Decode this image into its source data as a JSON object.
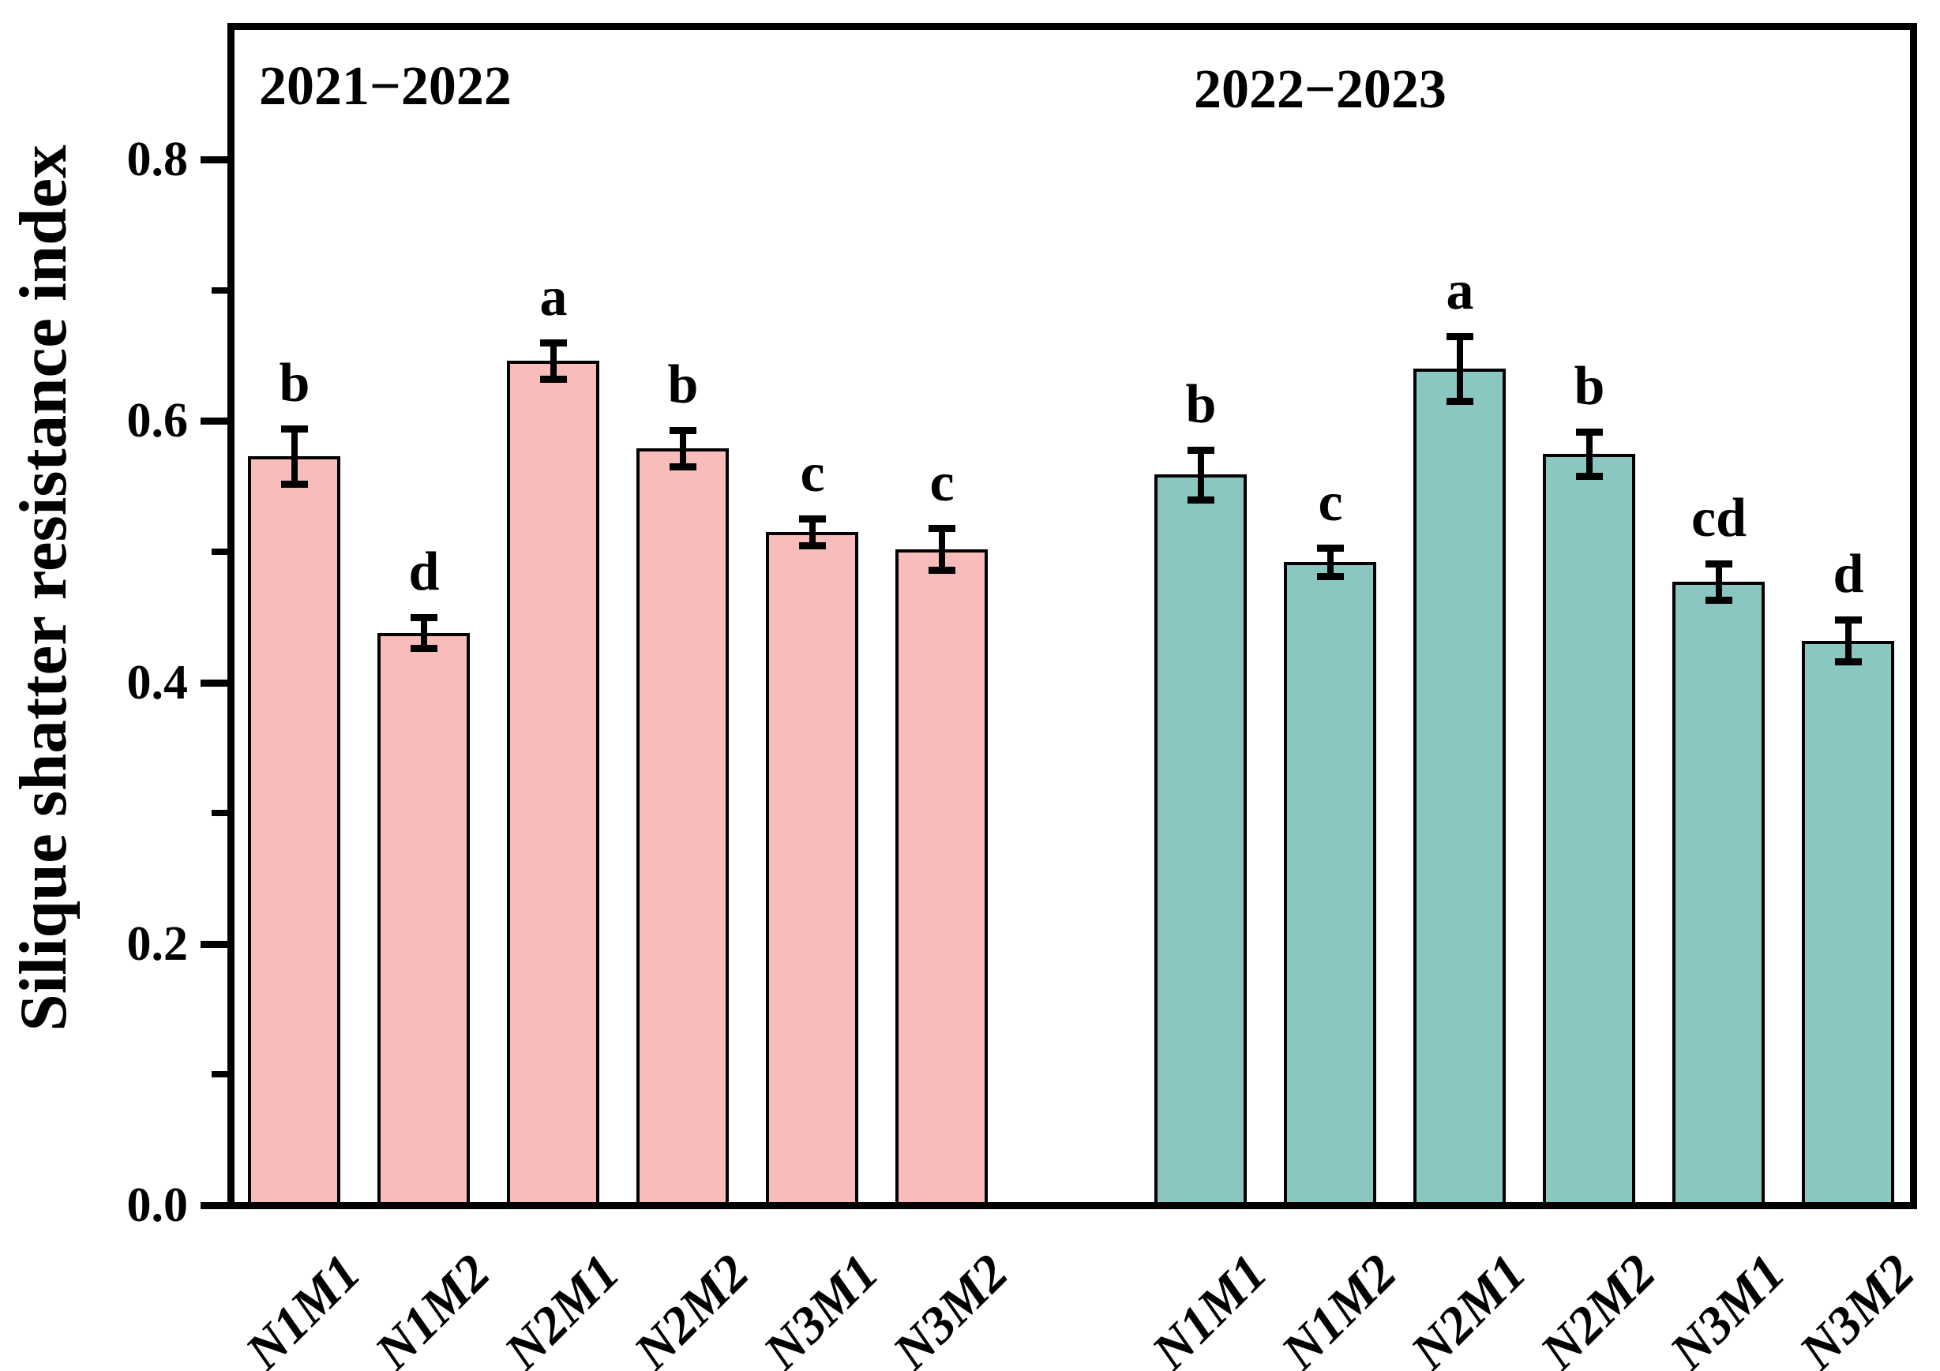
{
  "figure": {
    "background": "#ffffff"
  },
  "chart_data": {
    "type": "bar",
    "title": "",
    "xlabel": "",
    "ylabel": "Silique shatter resistance index",
    "ylim": [
      0.0,
      0.9
    ],
    "ytick_values": [
      0.0,
      0.2,
      0.4,
      0.6,
      0.8
    ],
    "ytick_labels": [
      "0.0",
      "0.2",
      "0.4",
      "0.6",
      "0.8"
    ],
    "minor_tick_values": [
      0.1,
      0.3,
      0.5,
      0.7
    ],
    "grid": false,
    "legend": "none",
    "bar_border_color": "#000000",
    "error_bar_color": "#000000",
    "categories": [
      "N1M1",
      "N1M2",
      "N2M1",
      "N2M2",
      "N3M1",
      "N3M2"
    ],
    "groups": [
      {
        "label": "2021−2022",
        "bar_color": "#F8BDBB",
        "series": [
          {
            "category": "N1M1",
            "value": 0.573,
            "error": 0.021,
            "sig_letter": "b"
          },
          {
            "category": "N1M2",
            "value": 0.438,
            "error": 0.012,
            "sig_letter": "d"
          },
          {
            "category": "N2M1",
            "value": 0.646,
            "error": 0.014,
            "sig_letter": "a"
          },
          {
            "category": "N2M2",
            "value": 0.579,
            "error": 0.014,
            "sig_letter": "b"
          },
          {
            "category": "N3M1",
            "value": 0.515,
            "error": 0.01,
            "sig_letter": "c"
          },
          {
            "category": "N3M2",
            "value": 0.502,
            "error": 0.016,
            "sig_letter": "c"
          }
        ]
      },
      {
        "label": "2022−2023",
        "bar_color": "#8AC7C1",
        "series": [
          {
            "category": "N1M1",
            "value": 0.559,
            "error": 0.019,
            "sig_letter": "b"
          },
          {
            "category": "N1M2",
            "value": 0.492,
            "error": 0.011,
            "sig_letter": "c"
          },
          {
            "category": "N2M1",
            "value": 0.64,
            "error": 0.025,
            "sig_letter": "a"
          },
          {
            "category": "N2M2",
            "value": 0.575,
            "error": 0.017,
            "sig_letter": "b"
          },
          {
            "category": "N3M1",
            "value": 0.477,
            "error": 0.014,
            "sig_letter": "cd"
          },
          {
            "category": "N3M2",
            "value": 0.432,
            "error": 0.016,
            "sig_letter": "d"
          }
        ]
      }
    ]
  }
}
